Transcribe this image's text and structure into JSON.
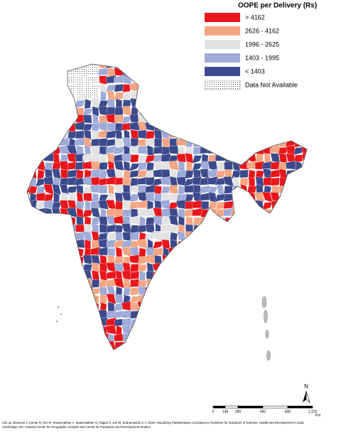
{
  "legend": {
    "title": "OOPE per Delivery (Rs)",
    "items": [
      {
        "label": "> 4162",
        "color": "#e8161b"
      },
      {
        "label": "2626 - 4162",
        "color": "#f4a582"
      },
      {
        "label": "1996 - 2625",
        "color": "#e2e2e2"
      },
      {
        "label": "1403 - 1995",
        "color": "#9eaad8"
      },
      {
        "label": "< 1403",
        "color": "#3b4a8c"
      },
      {
        "label": "Data Not Available",
        "color": "pattern"
      }
    ]
  },
  "north_arrow": {
    "label": "N"
  },
  "scale_bar": {
    "labels": [
      "0",
      "140",
      "280",
      "560",
      "840",
      "1,120"
    ],
    "unit": "Km"
  },
  "citation": [
    "Cite as: Blossom J, Kumar R, Kim R, Swaminathan A, Swaminathan G, Rajpal S, Joe W, Subramanian S V. 2019. Visualizing Parliamentary Constituency Factsheet for Indicators of Nutrition, Health and Development in India.",
    "Cambridge, MA: Harvard Center for Geographic Analysis and Center for Population and Development Studies."
  ]
}
